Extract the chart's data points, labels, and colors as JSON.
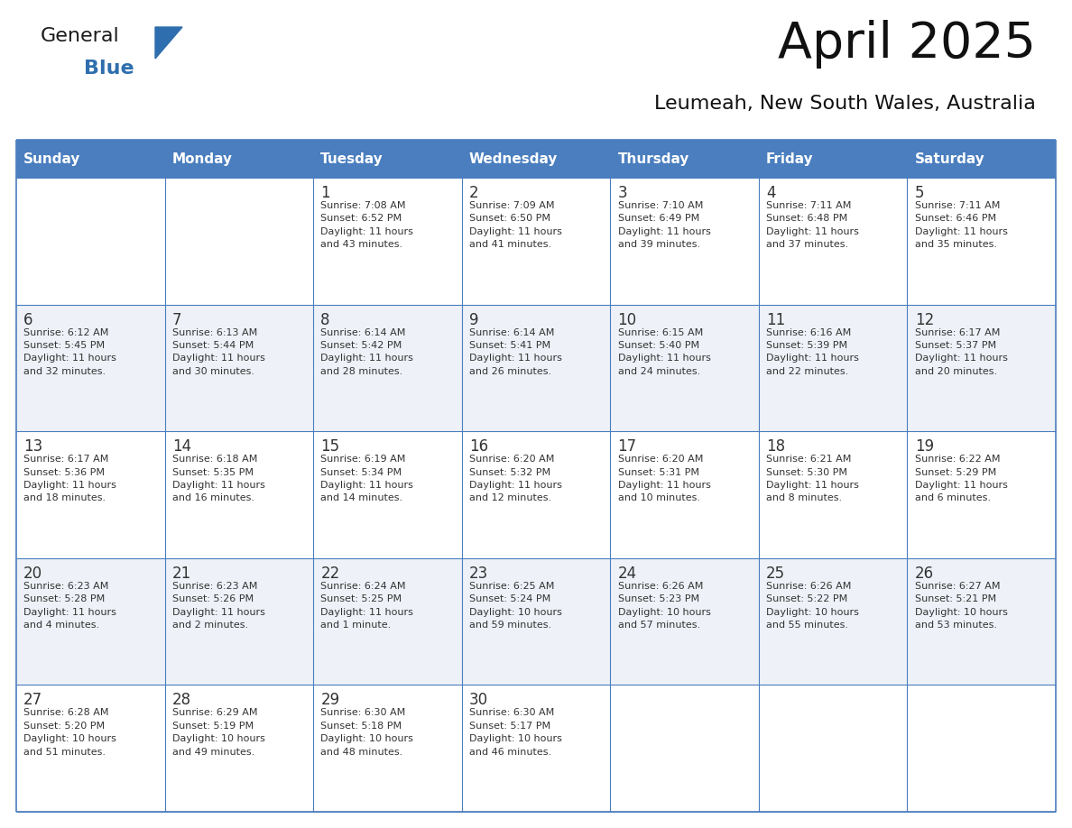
{
  "title": "April 2025",
  "subtitle": "Leumeah, New South Wales, Australia",
  "header_color": "#4a7ebf",
  "header_text_color": "#FFFFFF",
  "day_names": [
    "Sunday",
    "Monday",
    "Tuesday",
    "Wednesday",
    "Thursday",
    "Friday",
    "Saturday"
  ],
  "bg_color": "#FFFFFF",
  "row_bg_light": "#FFFFFF",
  "row_bg_dark": "#eef2f8",
  "border_color": "#4a7ebf",
  "text_color": "#333333",
  "title_color": "#111111",
  "subtitle_color": "#111111",
  "calendar": [
    [
      "",
      "",
      "1\nSunrise: 7:08 AM\nSunset: 6:52 PM\nDaylight: 11 hours\nand 43 minutes.",
      "2\nSunrise: 7:09 AM\nSunset: 6:50 PM\nDaylight: 11 hours\nand 41 minutes.",
      "3\nSunrise: 7:10 AM\nSunset: 6:49 PM\nDaylight: 11 hours\nand 39 minutes.",
      "4\nSunrise: 7:11 AM\nSunset: 6:48 PM\nDaylight: 11 hours\nand 37 minutes.",
      "5\nSunrise: 7:11 AM\nSunset: 6:46 PM\nDaylight: 11 hours\nand 35 minutes."
    ],
    [
      "6\nSunrise: 6:12 AM\nSunset: 5:45 PM\nDaylight: 11 hours\nand 32 minutes.",
      "7\nSunrise: 6:13 AM\nSunset: 5:44 PM\nDaylight: 11 hours\nand 30 minutes.",
      "8\nSunrise: 6:14 AM\nSunset: 5:42 PM\nDaylight: 11 hours\nand 28 minutes.",
      "9\nSunrise: 6:14 AM\nSunset: 5:41 PM\nDaylight: 11 hours\nand 26 minutes.",
      "10\nSunrise: 6:15 AM\nSunset: 5:40 PM\nDaylight: 11 hours\nand 24 minutes.",
      "11\nSunrise: 6:16 AM\nSunset: 5:39 PM\nDaylight: 11 hours\nand 22 minutes.",
      "12\nSunrise: 6:17 AM\nSunset: 5:37 PM\nDaylight: 11 hours\nand 20 minutes."
    ],
    [
      "13\nSunrise: 6:17 AM\nSunset: 5:36 PM\nDaylight: 11 hours\nand 18 minutes.",
      "14\nSunrise: 6:18 AM\nSunset: 5:35 PM\nDaylight: 11 hours\nand 16 minutes.",
      "15\nSunrise: 6:19 AM\nSunset: 5:34 PM\nDaylight: 11 hours\nand 14 minutes.",
      "16\nSunrise: 6:20 AM\nSunset: 5:32 PM\nDaylight: 11 hours\nand 12 minutes.",
      "17\nSunrise: 6:20 AM\nSunset: 5:31 PM\nDaylight: 11 hours\nand 10 minutes.",
      "18\nSunrise: 6:21 AM\nSunset: 5:30 PM\nDaylight: 11 hours\nand 8 minutes.",
      "19\nSunrise: 6:22 AM\nSunset: 5:29 PM\nDaylight: 11 hours\nand 6 minutes."
    ],
    [
      "20\nSunrise: 6:23 AM\nSunset: 5:28 PM\nDaylight: 11 hours\nand 4 minutes.",
      "21\nSunrise: 6:23 AM\nSunset: 5:26 PM\nDaylight: 11 hours\nand 2 minutes.",
      "22\nSunrise: 6:24 AM\nSunset: 5:25 PM\nDaylight: 11 hours\nand 1 minute.",
      "23\nSunrise: 6:25 AM\nSunset: 5:24 PM\nDaylight: 10 hours\nand 59 minutes.",
      "24\nSunrise: 6:26 AM\nSunset: 5:23 PM\nDaylight: 10 hours\nand 57 minutes.",
      "25\nSunrise: 6:26 AM\nSunset: 5:22 PM\nDaylight: 10 hours\nand 55 minutes.",
      "26\nSunrise: 6:27 AM\nSunset: 5:21 PM\nDaylight: 10 hours\nand 53 minutes."
    ],
    [
      "27\nSunrise: 6:28 AM\nSunset: 5:20 PM\nDaylight: 10 hours\nand 51 minutes.",
      "28\nSunrise: 6:29 AM\nSunset: 5:19 PM\nDaylight: 10 hours\nand 49 minutes.",
      "29\nSunrise: 6:30 AM\nSunset: 5:18 PM\nDaylight: 10 hours\nand 48 minutes.",
      "30\nSunrise: 6:30 AM\nSunset: 5:17 PM\nDaylight: 10 hours\nand 46 minutes.",
      "",
      "",
      ""
    ]
  ],
  "n_rows": 5,
  "n_cols": 7,
  "logo_triangle_color": "#2E6EAE",
  "logo_general_color": "#1a1a1a",
  "logo_blue_color": "#2E6EAE"
}
